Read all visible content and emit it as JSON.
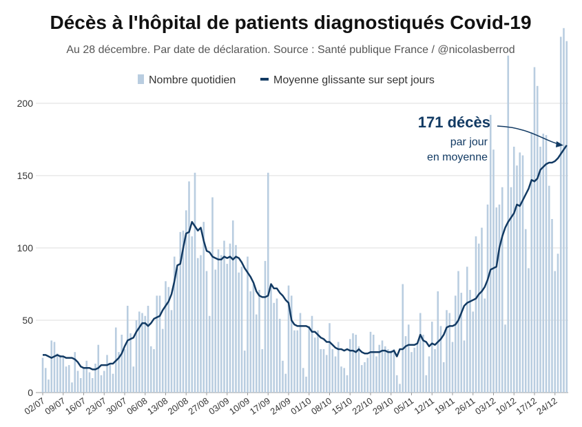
{
  "chart_data": {
    "type": "bar+line",
    "title": "Décès à l'hôpital de patients diagnostiqués Covid-19",
    "subtitle": "Au 28 décembre. Par date de déclaration. Source : Santé publique France / @nicolasberrod",
    "annotation": {
      "headline": "171 décès",
      "line1": "par jour",
      "line2": "en moyenne"
    },
    "categories": [
      "02/07",
      null,
      null,
      null,
      null,
      null,
      null,
      "09/07",
      null,
      null,
      null,
      null,
      null,
      null,
      "16/07",
      null,
      null,
      null,
      null,
      null,
      null,
      "23/07",
      null,
      null,
      null,
      null,
      null,
      null,
      "30/07",
      null,
      null,
      null,
      null,
      null,
      null,
      "06/08",
      null,
      null,
      null,
      null,
      null,
      null,
      "13/08",
      null,
      null,
      null,
      null,
      null,
      null,
      "20/08",
      null,
      null,
      null,
      null,
      null,
      null,
      "27/08",
      null,
      null,
      null,
      null,
      null,
      null,
      "03/09",
      null,
      null,
      null,
      null,
      null,
      null,
      "10/09",
      null,
      null,
      null,
      null,
      null,
      null,
      "17/09",
      null,
      null,
      null,
      null,
      null,
      null,
      "24/09",
      null,
      null,
      null,
      null,
      null,
      null,
      "01/10",
      null,
      null,
      null,
      null,
      null,
      null,
      "08/10",
      null,
      null,
      null,
      null,
      null,
      null,
      "15/10",
      null,
      null,
      null,
      null,
      null,
      null,
      "22/10",
      null,
      null,
      null,
      null,
      null,
      null,
      "29/10",
      null,
      null,
      null,
      null,
      null,
      null,
      "05/11",
      null,
      null,
      null,
      null,
      null,
      null,
      "12/11",
      null,
      null,
      null,
      null,
      null,
      null,
      "19/11",
      null,
      null,
      null,
      null,
      null,
      null,
      "26/11",
      null,
      null,
      null,
      null,
      null,
      null,
      "03/12",
      null,
      null,
      null,
      null,
      null,
      null,
      "10/12",
      null,
      null,
      null,
      null,
      null,
      null,
      "17/12",
      null,
      null,
      null,
      null,
      null,
      null,
      "24/12",
      null,
      null,
      null,
      null
    ],
    "series": [
      {
        "name": "Nombre quotidien",
        "type": "bar",
        "color": "#b9cde0",
        "values": [
          24,
          17,
          9,
          36,
          35,
          27,
          26,
          25,
          18,
          19,
          7,
          28,
          15,
          10,
          17,
          22,
          14,
          10,
          20,
          33,
          12,
          15,
          26,
          20,
          13,
          45,
          28,
          40,
          30,
          60,
          41,
          18,
          50,
          56,
          55,
          53,
          60,
          32,
          30,
          67,
          67,
          44,
          77,
          73,
          57,
          94,
          86,
          111,
          112,
          126,
          146,
          108,
          152,
          93,
          95,
          118,
          84,
          53,
          135,
          85,
          99,
          95,
          105,
          89,
          103,
          119,
          102,
          83,
          87,
          29,
          94,
          70,
          75,
          54,
          71,
          30,
          91,
          152,
          75,
          62,
          65,
          51,
          22,
          13,
          74,
          67,
          43,
          43,
          55,
          17,
          11,
          46,
          53,
          38,
          43,
          30,
          30,
          26,
          48,
          30,
          25,
          35,
          18,
          17,
          12,
          37,
          41,
          40,
          32,
          19,
          21,
          24,
          42,
          40,
          25,
          33,
          36,
          32,
          30,
          29,
          30,
          12,
          6,
          75,
          39,
          47,
          28,
          31,
          34,
          55,
          40,
          12,
          25,
          49,
          30,
          70,
          46,
          21,
          57,
          55,
          35,
          67,
          84,
          69,
          36,
          87,
          71,
          56,
          108,
          103,
          114,
          65,
          130,
          192,
          168,
          128,
          130,
          142,
          47,
          233,
          142,
          170,
          157,
          166,
          164,
          113,
          86,
          180,
          225,
          212,
          170,
          179,
          178,
          143,
          120,
          84,
          96,
          246,
          252,
          243
        ]
      },
      {
        "name": "Moyenne glissante sur sept jours",
        "type": "line",
        "color": "#123a63",
        "values": [
          26,
          26,
          25,
          24,
          25,
          26,
          25,
          25,
          24,
          24,
          24,
          23,
          21,
          18,
          17,
          17,
          17,
          16,
          16,
          17,
          19,
          19,
          19,
          20,
          20,
          22,
          24,
          27,
          32,
          36,
          37,
          38,
          42,
          45,
          48,
          48,
          46,
          48,
          51,
          52,
          53,
          57,
          60,
          63,
          68,
          77,
          88,
          89,
          100,
          110,
          111,
          118,
          115,
          112,
          114,
          105,
          98,
          97,
          94,
          93,
          92,
          92,
          94,
          93,
          94,
          92,
          94,
          93,
          90,
          86,
          83,
          80,
          76,
          70,
          67,
          66,
          66,
          67,
          75,
          72,
          72,
          69,
          67,
          64,
          62,
          50,
          47,
          46,
          46,
          46,
          46,
          45,
          42,
          42,
          40,
          38,
          37,
          35,
          35,
          33,
          31,
          30,
          30,
          29,
          30,
          29,
          29,
          28,
          30,
          28,
          27,
          27,
          28,
          28,
          28,
          28,
          29,
          29,
          28,
          28,
          29,
          25,
          30,
          30,
          32,
          33,
          33,
          33,
          34,
          40,
          36,
          35,
          32,
          34,
          33,
          35,
          37,
          40,
          45,
          46,
          46,
          47,
          50,
          55,
          60,
          62,
          63,
          64,
          65,
          68,
          70,
          73,
          78,
          85,
          86,
          87,
          100,
          108,
          114,
          118,
          121,
          124,
          130,
          129,
          133,
          137,
          141,
          147,
          146,
          148,
          154,
          156,
          158,
          159,
          159,
          160,
          162,
          165,
          168,
          171
        ]
      }
    ],
    "ylim": [
      0,
      250
    ],
    "yticks": [
      0,
      50,
      100,
      150,
      200
    ],
    "grid": true,
    "legend": "top"
  }
}
